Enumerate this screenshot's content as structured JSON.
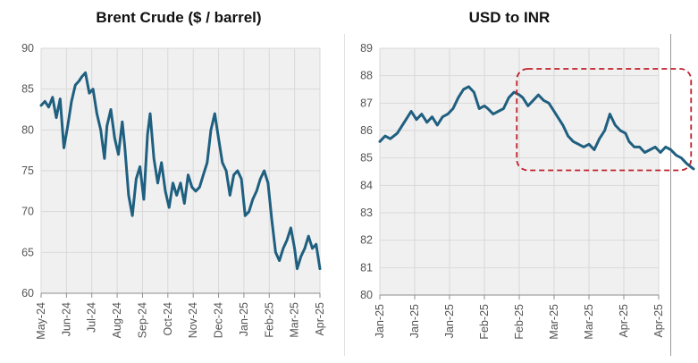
{
  "chart_data": [
    {
      "type": "line",
      "title": "Brent Crude ($ / barrel)",
      "xlabel": "",
      "ylabel": "",
      "ylim": [
        60,
        90
      ],
      "yticks": [
        60,
        65,
        70,
        75,
        80,
        85,
        90
      ],
      "grid": true,
      "line_color": "#1f5f7f",
      "plot_background": "#f0f0f0",
      "categories": [
        "May-24",
        "Jun-24",
        "Jul-24",
        "Aug-24",
        "Sep-24",
        "Oct-24",
        "Nov-24",
        "Dec-24",
        "Jan-25",
        "Feb-25",
        "Mar-25",
        "Apr-25"
      ],
      "series": [
        {
          "name": "Brent Crude",
          "x": [
            0,
            0.15,
            0.3,
            0.45,
            0.6,
            0.75,
            0.9,
            1.05,
            1.2,
            1.35,
            1.5,
            1.6,
            1.75,
            1.9,
            2.05,
            2.2,
            2.35,
            2.5,
            2.6,
            2.75,
            2.9,
            3.05,
            3.2,
            3.3,
            3.45,
            3.6,
            3.75,
            3.9,
            4.05,
            4.2,
            4.3,
            4.45,
            4.6,
            4.75,
            4.9,
            5.05,
            5.2,
            5.35,
            5.5,
            5.65,
            5.8,
            5.95,
            6.1,
            6.25,
            6.4,
            6.55,
            6.7,
            6.85,
            7.0,
            7.15,
            7.3,
            7.45,
            7.6,
            7.75,
            7.9,
            8.05,
            8.2,
            8.35,
            8.5,
            8.65,
            8.8,
            8.95,
            9.1,
            9.25,
            9.4,
            9.55,
            9.7,
            9.85,
            10.0,
            10.1,
            10.25,
            10.4,
            10.55,
            10.7,
            10.85,
            11.0
          ],
          "values": [
            83.0,
            83.5,
            82.8,
            84.0,
            81.5,
            83.8,
            77.8,
            80.5,
            83.5,
            85.5,
            86.0,
            86.5,
            87.0,
            84.5,
            85.0,
            82.0,
            80.0,
            76.5,
            80.5,
            82.5,
            79.0,
            77.0,
            81.0,
            78.0,
            72.0,
            69.5,
            74.0,
            75.5,
            71.5,
            79.5,
            82.0,
            76.5,
            73.5,
            76.0,
            72.5,
            70.5,
            73.5,
            72.0,
            73.5,
            71.0,
            74.5,
            73.0,
            72.5,
            73.0,
            74.5,
            76.0,
            80.0,
            82.0,
            79.0,
            76.0,
            75.0,
            72.0,
            74.5,
            75.0,
            74.0,
            69.5,
            70.0,
            71.5,
            72.5,
            74.0,
            75.0,
            73.5,
            69.0,
            65.0,
            64.0,
            65.5,
            66.5,
            68.0,
            65.5,
            63.0,
            64.5,
            65.5,
            67.0,
            65.5,
            66.0,
            63.0
          ]
        }
      ]
    },
    {
      "type": "line",
      "title": "USD to INR",
      "xlabel": "",
      "ylabel": "",
      "ylim": [
        80,
        89
      ],
      "yticks": [
        80,
        81,
        82,
        83,
        84,
        85,
        86,
        87,
        88,
        89
      ],
      "grid": true,
      "line_color": "#1f5f7f",
      "plot_background": "#f0f0f0",
      "categories": [
        "Jan-25",
        "Jan-25",
        "Jan-25",
        "Feb-25",
        "Feb-25",
        "Mar-25",
        "Mar-25",
        "Apr-25",
        "Apr-25"
      ],
      "annotation": {
        "type": "dashed-rounded-box",
        "color": "#c0202a",
        "x_range": [
          3.93,
          8.93
        ],
        "y_range": [
          84.55,
          88.25
        ]
      },
      "series": [
        {
          "name": "USD to INR",
          "x": [
            0,
            0.15,
            0.3,
            0.5,
            0.7,
            0.9,
            1.05,
            1.2,
            1.35,
            1.5,
            1.65,
            1.8,
            1.95,
            2.1,
            2.25,
            2.4,
            2.55,
            2.7,
            2.85,
            3.0,
            3.1,
            3.25,
            3.4,
            3.55,
            3.7,
            3.85,
            4.0,
            4.1,
            4.25,
            4.4,
            4.55,
            4.7,
            4.85,
            5.0,
            5.1,
            5.25,
            5.4,
            5.55,
            5.7,
            5.85,
            6.0,
            6.15,
            6.3,
            6.45,
            6.6,
            6.75,
            6.9,
            7.05,
            7.15,
            7.3,
            7.45,
            7.6,
            7.75,
            7.9,
            8.05,
            8.2,
            8.35,
            8.5,
            8.65,
            8.8,
            8.9,
            9.0
          ],
          "values": [
            85.6,
            85.8,
            85.7,
            85.9,
            86.3,
            86.7,
            86.4,
            86.6,
            86.3,
            86.5,
            86.2,
            86.5,
            86.6,
            86.8,
            87.2,
            87.5,
            87.6,
            87.4,
            86.8,
            86.9,
            86.8,
            86.6,
            86.7,
            86.8,
            87.2,
            87.4,
            87.3,
            87.2,
            86.9,
            87.1,
            87.3,
            87.1,
            87.0,
            86.7,
            86.5,
            86.2,
            85.8,
            85.6,
            85.5,
            85.4,
            85.5,
            85.3,
            85.7,
            86.0,
            86.6,
            86.2,
            86.0,
            85.9,
            85.6,
            85.4,
            85.4,
            85.2,
            85.3,
            85.4,
            85.2,
            85.4,
            85.3,
            85.1,
            85.0,
            84.8,
            84.7,
            84.6
          ]
        }
      ]
    }
  ]
}
